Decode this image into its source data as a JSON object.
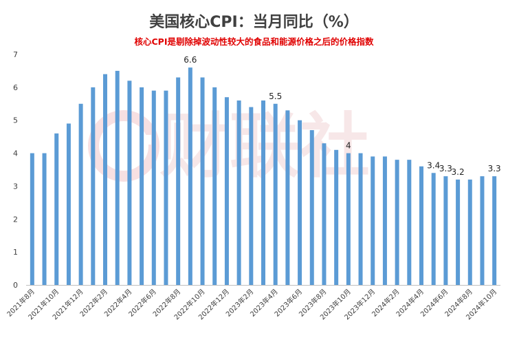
{
  "chart_data": {
    "type": "bar",
    "title": "美国核心CPI：当月同比（%）",
    "subtitle": "核心CPI是剔除掉波动性较大的食品和能源价格之后的价格指数",
    "xlabel": "",
    "ylabel": "",
    "ylim": [
      0,
      7
    ],
    "yticks": [
      0,
      1,
      2,
      3,
      4,
      5,
      6,
      7
    ],
    "grid": false,
    "color": "#5b9bd5",
    "categories": [
      "2021年8月",
      "2021年9月",
      "2021年10月",
      "2021年11月",
      "2021年12月",
      "2022年1月",
      "2022年2月",
      "2022年3月",
      "2022年4月",
      "2022年5月",
      "2022年6月",
      "2022年7月",
      "2022年8月",
      "2022年9月",
      "2022年10月",
      "2022年11月",
      "2022年12月",
      "2023年1月",
      "2023年2月",
      "2023年3月",
      "2023年4月",
      "2023年5月",
      "2023年6月",
      "2023年7月",
      "2023年8月",
      "2023年9月",
      "2023年10月",
      "2023年11月",
      "2023年12月",
      "2024年1月",
      "2024年2月",
      "2024年3月",
      "2024年4月",
      "2024年5月",
      "2024年6月",
      "2024年7月",
      "2024年8月",
      "2024年9月",
      "2024年10月"
    ],
    "x_tick_labels": [
      "2021年8月",
      "2021年10月",
      "2021年12月",
      "2022年2月",
      "2022年4月",
      "2022年6月",
      "2022年8月",
      "2022年10月",
      "2022年12月",
      "2023年2月",
      "2023年4月",
      "2023年6月",
      "2023年8月",
      "2023年10月",
      "2023年12月",
      "2024年2月",
      "2024年4月",
      "2024年6月",
      "2024年8月",
      "2024年10月"
    ],
    "values": [
      4.0,
      4.0,
      4.6,
      4.9,
      5.5,
      6.0,
      6.4,
      6.5,
      6.2,
      6.0,
      5.9,
      5.9,
      6.3,
      6.6,
      6.3,
      6.0,
      5.7,
      5.6,
      5.4,
      5.6,
      5.5,
      5.3,
      5.0,
      4.7,
      4.3,
      4.1,
      4.0,
      4.0,
      3.9,
      3.9,
      3.8,
      3.8,
      3.6,
      3.4,
      3.3,
      3.2,
      3.2,
      3.3,
      3.3
    ],
    "data_labels": [
      {
        "index": 13,
        "text": "6.6"
      },
      {
        "index": 20,
        "text": "5.5"
      },
      {
        "index": 26,
        "text": "4"
      },
      {
        "index": 33,
        "text": "3.4"
      },
      {
        "index": 34,
        "text": "3.3"
      },
      {
        "index": 35,
        "text": "3.2"
      },
      {
        "index": 38,
        "text": "3.3"
      }
    ]
  },
  "watermark": {
    "text": "财联社",
    "color": "#f2d4d6"
  }
}
